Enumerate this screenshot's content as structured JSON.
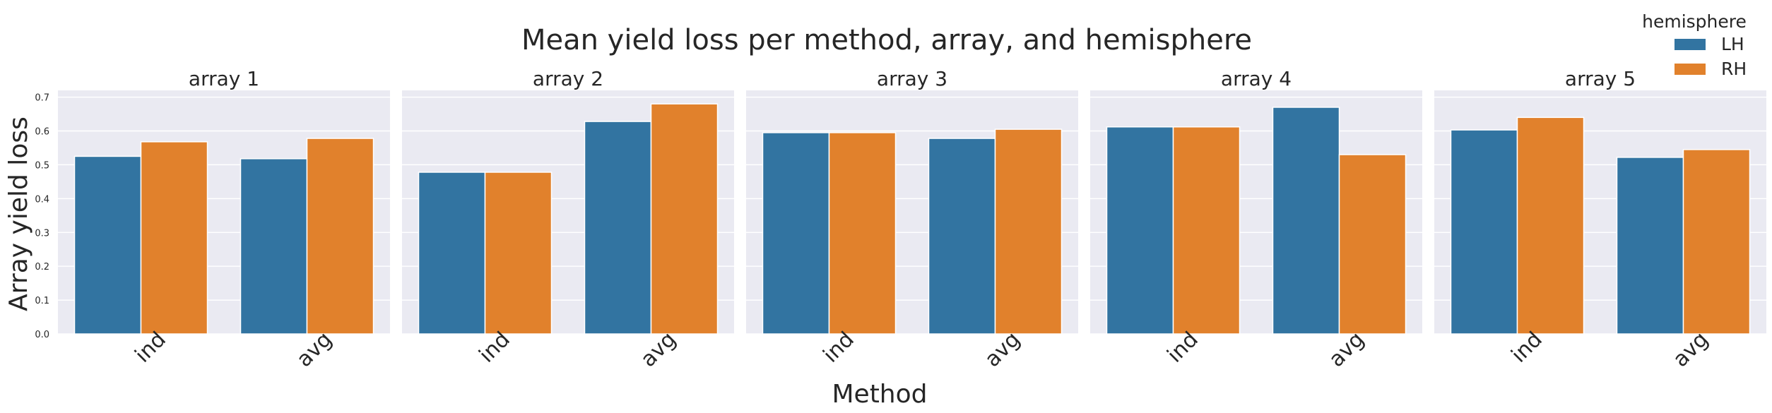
{
  "chart_data": {
    "type": "bar",
    "title": "Mean yield loss per method, array, and hemisphere",
    "xlabel": "Method",
    "ylabel": "Array yield loss",
    "ylim": [
      0,
      0.72
    ],
    "yticks": [
      "0.0",
      "0.1",
      "0.2",
      "0.3",
      "0.4",
      "0.5",
      "0.6",
      "0.7"
    ],
    "categories": [
      "ind",
      "avg"
    ],
    "grid": true,
    "legend": {
      "title": "hemisphere",
      "placement": "top-right",
      "entries": [
        {
          "label": "LH",
          "color": "#3274a1"
        },
        {
          "label": "RH",
          "color": "#e1812c"
        }
      ]
    },
    "panels": [
      {
        "title": "array 1",
        "series": [
          {
            "name": "LH",
            "values": [
              0.525,
              0.518
            ]
          },
          {
            "name": "RH",
            "values": [
              0.568,
              0.578
            ]
          }
        ]
      },
      {
        "title": "array 2",
        "series": [
          {
            "name": "LH",
            "values": [
              0.478,
              0.628
            ]
          },
          {
            "name": "RH",
            "values": [
              0.478,
              0.68
            ]
          }
        ]
      },
      {
        "title": "array 3",
        "series": [
          {
            "name": "LH",
            "values": [
              0.595,
              0.578
            ]
          },
          {
            "name": "RH",
            "values": [
              0.595,
              0.605
            ]
          }
        ]
      },
      {
        "title": "array 4",
        "series": [
          {
            "name": "LH",
            "values": [
              0.612,
              0.67
            ]
          },
          {
            "name": "RH",
            "values": [
              0.612,
              0.53
            ]
          }
        ]
      },
      {
        "title": "array 5",
        "series": [
          {
            "name": "LH",
            "values": [
              0.603,
              0.522
            ]
          },
          {
            "name": "RH",
            "values": [
              0.64,
              0.545
            ]
          }
        ]
      }
    ]
  }
}
